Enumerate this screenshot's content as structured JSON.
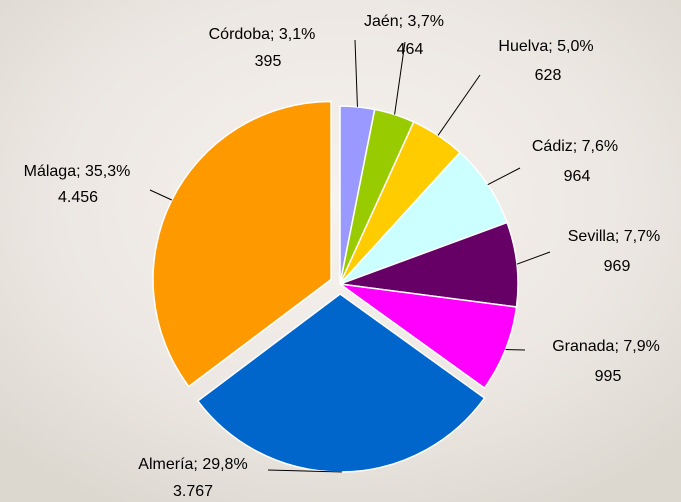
{
  "chart_data": {
    "type": "pie",
    "categories": [
      "Córdoba; 3,1%",
      "Jaén; 3,7%",
      "Huelva; 5,0%",
      "Cádiz; 7,6%",
      "Sevilla; 7,7%",
      "Granada; 7,9%",
      "Almería; 29,8%",
      "Málaga; 35,3%"
    ],
    "values": [
      395,
      464,
      628,
      964,
      969,
      995,
      3767,
      4456
    ],
    "value_labels": [
      "395",
      "464",
      "628",
      "964",
      "969",
      "995",
      "3.767",
      "4.456"
    ],
    "colors": [
      "#9999ff",
      "#99cc00",
      "#ffcc00",
      "#ccffff",
      "#660066",
      "#ff00ff",
      "#0066cc",
      "#ff9900"
    ]
  }
}
